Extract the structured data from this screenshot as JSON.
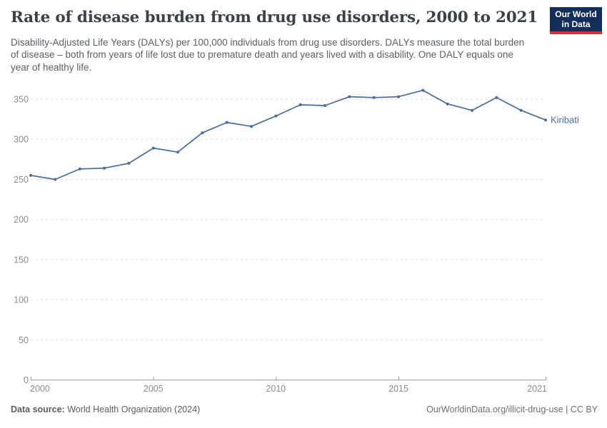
{
  "header": {
    "title": "Rate of disease burden from drug use disorders, 2000 to 2021",
    "subtitle": "Disability-Adjusted Life Years (DALYs) per 100,000 individuals from drug use disorders. DALYs measure the total burden of disease – both from years of life lost due to premature death and years lived with a disability. One DALY equals one year of healthy life."
  },
  "logo": {
    "line1": "Our World",
    "line2": "in Data",
    "bg_color": "#142d5a",
    "bar_color": "#d73228"
  },
  "chart_data": {
    "type": "line",
    "title": "Rate of disease burden from drug use disorders, 2000 to 2021",
    "x": [
      2000,
      2001,
      2002,
      2003,
      2004,
      2005,
      2006,
      2007,
      2008,
      2009,
      2010,
      2011,
      2012,
      2013,
      2014,
      2015,
      2016,
      2017,
      2018,
      2019,
      2020,
      2021
    ],
    "series": [
      {
        "name": "Kiribati",
        "values": [
          255,
          250,
          263,
          264,
          270,
          289,
          284,
          308,
          321,
          316,
          329,
          343,
          342,
          353,
          352,
          353,
          361,
          344,
          336,
          352,
          336,
          324
        ],
        "color": "#4c6a9c"
      }
    ],
    "xlabel": "",
    "ylabel": "",
    "ylim": [
      0,
      350
    ],
    "yticks": [
      0,
      50,
      100,
      150,
      200,
      250,
      300,
      350
    ],
    "xticks": [
      2000,
      2005,
      2010,
      2015,
      2021
    ],
    "grid": "horizontal-dashed",
    "legend_position": "end-of-line-label",
    "axis_label_color": "#8a8a8a",
    "gridline_color": "#dadada",
    "axis_line_color": "#9a9a9a"
  },
  "footer": {
    "source_label": "Data source:",
    "source_value": " World Health Organization (2024)",
    "attribution": "OurWorldinData.org/illicit-drug-use | CC BY"
  }
}
